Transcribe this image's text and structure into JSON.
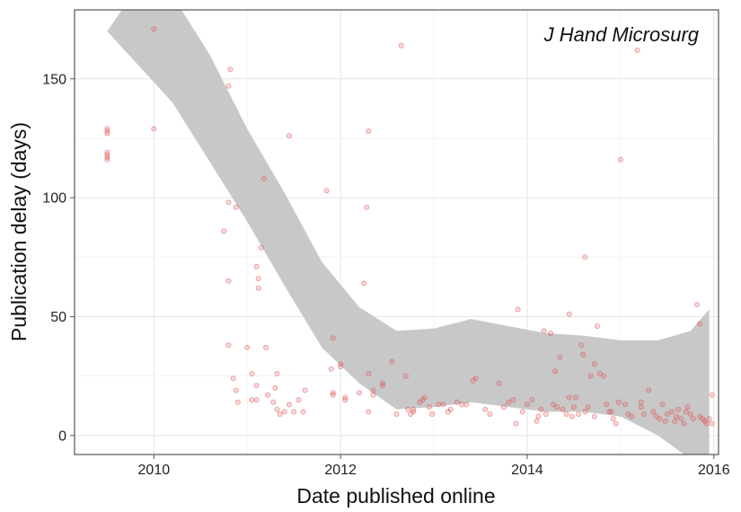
{
  "chart_data": {
    "type": "scatter",
    "xlabel": "Date published online",
    "ylabel": "Publication delay (days)",
    "annotation": "J Hand Microsurg",
    "xlim": [
      2009.15,
      2016.05
    ],
    "ylim": [
      -8,
      179
    ],
    "x_ticks": [
      2010,
      2012,
      2014,
      2016
    ],
    "y_ticks": [
      0,
      50,
      100,
      150
    ],
    "grid": true,
    "point_color": "#e05050",
    "band_color": "#c8c8c8",
    "series": [
      {
        "points": [
          [
            2009.5,
            116
          ],
          [
            2009.5,
            117
          ],
          [
            2009.5,
            118
          ],
          [
            2009.5,
            119
          ],
          [
            2009.5,
            127
          ],
          [
            2009.5,
            128
          ],
          [
            2009.5,
            129
          ],
          [
            2010.0,
            171
          ],
          [
            2010.0,
            129
          ],
          [
            2010.75,
            86
          ],
          [
            2010.8,
            98
          ],
          [
            2010.8,
            65
          ],
          [
            2010.8,
            38
          ],
          [
            2010.8,
            147
          ],
          [
            2010.82,
            154
          ],
          [
            2010.85,
            24
          ],
          [
            2010.88,
            96
          ],
          [
            2010.88,
            19
          ],
          [
            2010.9,
            14
          ],
          [
            2011.0,
            37
          ],
          [
            2011.05,
            26
          ],
          [
            2011.05,
            15
          ],
          [
            2011.1,
            15
          ],
          [
            2011.1,
            71
          ],
          [
            2011.12,
            66
          ],
          [
            2011.12,
            62
          ],
          [
            2011.15,
            79
          ],
          [
            2011.1,
            21
          ],
          [
            2011.18,
            108
          ],
          [
            2011.2,
            37
          ],
          [
            2011.22,
            17
          ],
          [
            2011.28,
            14
          ],
          [
            2011.3,
            20
          ],
          [
            2011.32,
            26
          ],
          [
            2011.32,
            11
          ],
          [
            2011.35,
            9
          ],
          [
            2011.4,
            10
          ],
          [
            2011.45,
            126
          ],
          [
            2011.45,
            13
          ],
          [
            2011.5,
            10
          ],
          [
            2011.55,
            15
          ],
          [
            2011.6,
            10
          ],
          [
            2011.62,
            19
          ],
          [
            2011.85,
            103
          ],
          [
            2011.9,
            28
          ],
          [
            2011.92,
            17
          ],
          [
            2011.92,
            18
          ],
          [
            2011.92,
            41
          ],
          [
            2012.0,
            29
          ],
          [
            2012.0,
            30
          ],
          [
            2012.05,
            16
          ],
          [
            2012.05,
            15
          ],
          [
            2012.2,
            18
          ],
          [
            2012.25,
            64
          ],
          [
            2012.28,
            96
          ],
          [
            2012.3,
            128
          ],
          [
            2012.3,
            26
          ],
          [
            2012.3,
            10
          ],
          [
            2012.35,
            19
          ],
          [
            2012.35,
            17
          ],
          [
            2012.45,
            22
          ],
          [
            2012.45,
            21
          ],
          [
            2012.55,
            31
          ],
          [
            2012.6,
            9
          ],
          [
            2012.65,
            164
          ],
          [
            2012.7,
            25
          ],
          [
            2012.72,
            11
          ],
          [
            2012.75,
            9
          ],
          [
            2012.78,
            10
          ],
          [
            2012.78,
            11
          ],
          [
            2012.85,
            14
          ],
          [
            2012.88,
            15
          ],
          [
            2012.9,
            16
          ],
          [
            2012.95,
            12
          ],
          [
            2012.98,
            9
          ],
          [
            2013.05,
            13
          ],
          [
            2013.1,
            13
          ],
          [
            2013.15,
            10
          ],
          [
            2013.18,
            11
          ],
          [
            2013.25,
            14
          ],
          [
            2013.3,
            13
          ],
          [
            2013.35,
            13
          ],
          [
            2013.42,
            23
          ],
          [
            2013.45,
            24
          ],
          [
            2013.55,
            11
          ],
          [
            2013.6,
            9
          ],
          [
            2013.7,
            22
          ],
          [
            2013.75,
            12
          ],
          [
            2013.8,
            14
          ],
          [
            2013.85,
            15
          ],
          [
            2013.88,
            5
          ],
          [
            2013.9,
            53
          ],
          [
            2013.95,
            10
          ],
          [
            2014.0,
            13
          ],
          [
            2014.05,
            15
          ],
          [
            2014.1,
            6
          ],
          [
            2014.12,
            8
          ],
          [
            2014.15,
            11
          ],
          [
            2014.18,
            44
          ],
          [
            2014.2,
            9
          ],
          [
            2014.25,
            43
          ],
          [
            2014.28,
            13
          ],
          [
            2014.3,
            27
          ],
          [
            2014.32,
            12
          ],
          [
            2014.35,
            33
          ],
          [
            2014.38,
            11
          ],
          [
            2014.42,
            9
          ],
          [
            2014.45,
            16
          ],
          [
            2014.45,
            51
          ],
          [
            2014.48,
            8
          ],
          [
            2014.5,
            12
          ],
          [
            2014.52,
            16
          ],
          [
            2014.55,
            9
          ],
          [
            2014.58,
            38
          ],
          [
            2014.6,
            34
          ],
          [
            2014.62,
            75
          ],
          [
            2014.62,
            10
          ],
          [
            2014.65,
            12
          ],
          [
            2014.68,
            25
          ],
          [
            2014.72,
            30
          ],
          [
            2014.72,
            8
          ],
          [
            2014.75,
            46
          ],
          [
            2014.78,
            26
          ],
          [
            2014.82,
            25
          ],
          [
            2014.85,
            13
          ],
          [
            2014.88,
            10
          ],
          [
            2014.9,
            10
          ],
          [
            2014.92,
            7
          ],
          [
            2014.95,
            5
          ],
          [
            2014.98,
            14
          ],
          [
            2015.0,
            116
          ],
          [
            2015.05,
            13
          ],
          [
            2015.08,
            9
          ],
          [
            2015.12,
            8
          ],
          [
            2015.18,
            162
          ],
          [
            2015.22,
            12
          ],
          [
            2015.22,
            14
          ],
          [
            2015.25,
            9
          ],
          [
            2015.3,
            19
          ],
          [
            2015.35,
            10
          ],
          [
            2015.38,
            8
          ],
          [
            2015.42,
            7
          ],
          [
            2015.45,
            13
          ],
          [
            2015.48,
            6
          ],
          [
            2015.5,
            9
          ],
          [
            2015.55,
            10
          ],
          [
            2015.58,
            6
          ],
          [
            2015.6,
            8
          ],
          [
            2015.62,
            11
          ],
          [
            2015.65,
            7
          ],
          [
            2015.68,
            5
          ],
          [
            2015.7,
            10
          ],
          [
            2015.72,
            12
          ],
          [
            2015.75,
            9
          ],
          [
            2015.78,
            7
          ],
          [
            2015.82,
            55
          ],
          [
            2015.85,
            47
          ],
          [
            2015.85,
            8
          ],
          [
            2015.88,
            7
          ],
          [
            2015.9,
            6
          ],
          [
            2015.92,
            5
          ],
          [
            2015.95,
            7
          ],
          [
            2015.98,
            5
          ],
          [
            2015.98,
            17
          ]
        ]
      }
    ],
    "smooth_band": {
      "x": [
        2009.5,
        2009.85,
        2010.2,
        2010.6,
        2011.0,
        2011.4,
        2011.8,
        2012.2,
        2012.6,
        2013.0,
        2013.4,
        2013.8,
        2014.2,
        2014.6,
        2015.0,
        2015.4,
        2015.75,
        2015.95
      ],
      "upper": [
        170,
        190,
        185,
        160,
        129,
        102,
        73,
        54,
        44,
        45,
        49,
        46,
        43,
        42,
        40,
        40,
        44,
        53
      ],
      "lower": [
        170,
        155,
        140,
        115,
        90,
        63,
        37,
        22,
        11,
        12,
        14,
        12,
        10,
        10,
        8,
        0,
        -10,
        -22
      ]
    }
  }
}
